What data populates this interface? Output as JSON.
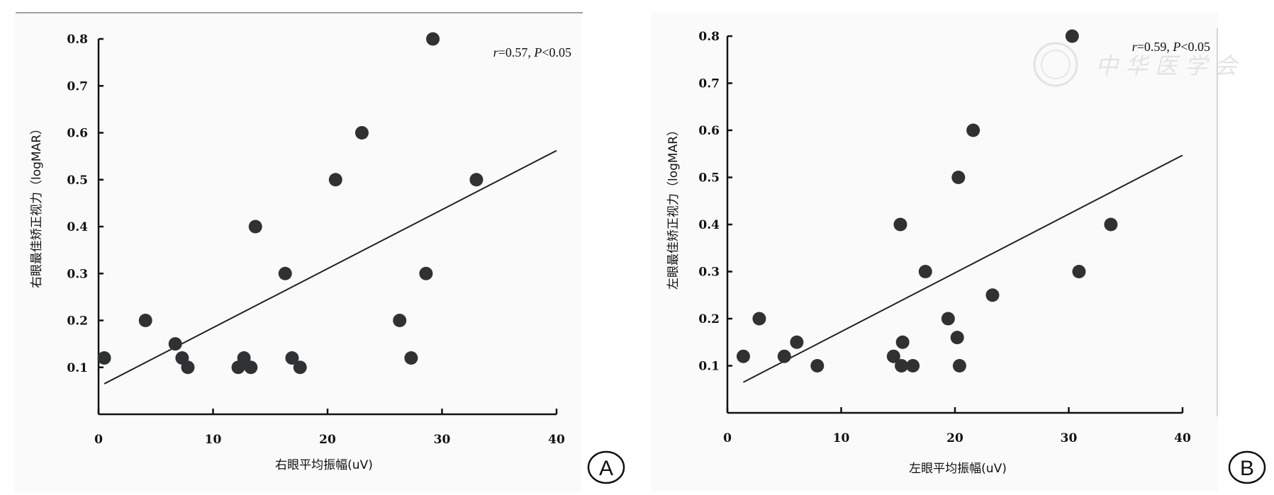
{
  "chart_data": [
    {
      "type": "scatter",
      "panel_label": "A",
      "xlabel": "右眼平均振幅(uV)",
      "ylabel": "右眼最佳矫正视力（logMAR）",
      "annotation": {
        "r_symbol": "r",
        "r_value": "=0.57, ",
        "p_symbol": "P",
        "p_value": "<0.05"
      },
      "xlim": [
        0,
        40
      ],
      "ylim": [
        0,
        0.8
      ],
      "x_ticks": [
        "0",
        "10",
        "20",
        "30",
        "40"
      ],
      "y_ticks": [
        "0.1",
        "0.2",
        "0.3",
        "0.4",
        "0.5",
        "0.6",
        "0.7",
        "0.8"
      ],
      "points": [
        [
          0.5,
          0.12
        ],
        [
          4.1,
          0.2
        ],
        [
          6.7,
          0.15
        ],
        [
          7.3,
          0.12
        ],
        [
          7.8,
          0.1
        ],
        [
          12.2,
          0.1
        ],
        [
          12.7,
          0.12
        ],
        [
          13.3,
          0.1
        ],
        [
          13.7,
          0.4
        ],
        [
          16.3,
          0.3
        ],
        [
          16.9,
          0.12
        ],
        [
          17.6,
          0.1
        ],
        [
          20.7,
          0.5
        ],
        [
          23.0,
          0.6
        ],
        [
          26.3,
          0.2
        ],
        [
          27.3,
          0.12
        ],
        [
          28.6,
          0.3
        ],
        [
          29.2,
          0.8
        ],
        [
          33.0,
          0.5
        ]
      ],
      "fit_line": [
        [
          0.5,
          0.065
        ],
        [
          40,
          0.562
        ]
      ],
      "marker_color": "#2f3133",
      "grid": false
    },
    {
      "type": "scatter",
      "panel_label": "B",
      "xlabel": "左眼平均振幅(uV)",
      "ylabel": "左眼最佳矫正视力（logMAR）",
      "annotation": {
        "r_symbol": "r",
        "r_value": "=0.59, ",
        "p_symbol": "P",
        "p_value": "<0.05"
      },
      "xlim": [
        0,
        40
      ],
      "ylim": [
        0,
        0.8
      ],
      "x_ticks": [
        "0",
        "10",
        "20",
        "30",
        "40"
      ],
      "y_ticks": [
        "0.1",
        "0.2",
        "0.3",
        "0.4",
        "0.5",
        "0.6",
        "0.7",
        "0.8"
      ],
      "points": [
        [
          1.4,
          0.12
        ],
        [
          2.8,
          0.2
        ],
        [
          5.0,
          0.12
        ],
        [
          6.1,
          0.15
        ],
        [
          7.9,
          0.1
        ],
        [
          14.6,
          0.12
        ],
        [
          15.2,
          0.4
        ],
        [
          15.4,
          0.15
        ],
        [
          15.3,
          0.1
        ],
        [
          16.3,
          0.1
        ],
        [
          17.4,
          0.3
        ],
        [
          19.4,
          0.2
        ],
        [
          20.2,
          0.16
        ],
        [
          20.3,
          0.5
        ],
        [
          20.4,
          0.1
        ],
        [
          21.6,
          0.6
        ],
        [
          23.3,
          0.25
        ],
        [
          30.3,
          0.8
        ],
        [
          30.9,
          0.3
        ],
        [
          33.7,
          0.4
        ]
      ],
      "fit_line": [
        [
          1.4,
          0.065
        ],
        [
          40,
          0.547
        ]
      ],
      "marker_color": "#2f3133",
      "grid": false,
      "watermark": "中华医学会"
    }
  ]
}
